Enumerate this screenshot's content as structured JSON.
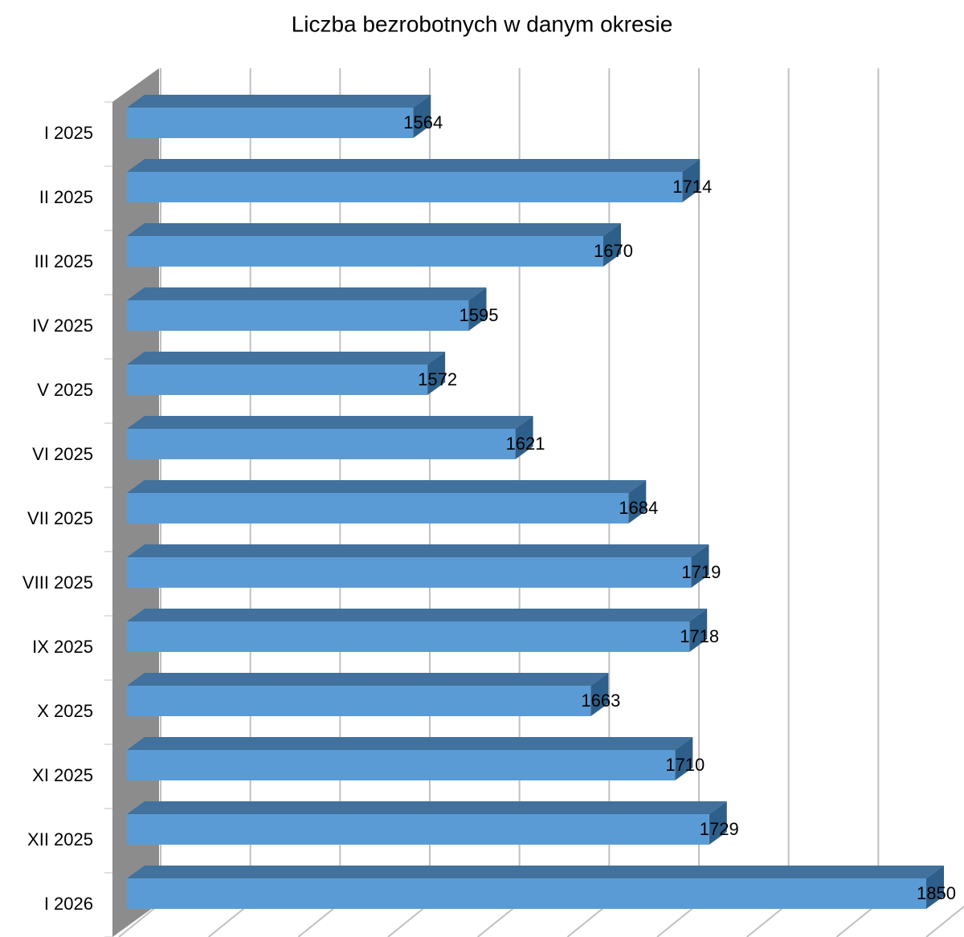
{
  "chart_data": {
    "type": "bar3d_horizontal",
    "title": "Liczba bezrobotnych w danym okresie",
    "categories": [
      "I 2025",
      "II 2025",
      "III 2025",
      "IV 2025",
      "V 2025",
      "VI 2025",
      "VII 2025",
      "VIII 2025",
      "IX 2025",
      "X 2025",
      "XI 2025",
      "XII 2025",
      "I 2026"
    ],
    "values": [
      1564,
      1714,
      1670,
      1595,
      1572,
      1621,
      1684,
      1719,
      1718,
      1663,
      1710,
      1729,
      1850
    ],
    "color": "#5b9bd5",
    "xlim": [
      1400,
      1850
    ],
    "xticks": [
      1400,
      1450,
      1500,
      1550,
      1600,
      1650,
      1700,
      1750,
      1800,
      1850
    ],
    "grid": true
  }
}
